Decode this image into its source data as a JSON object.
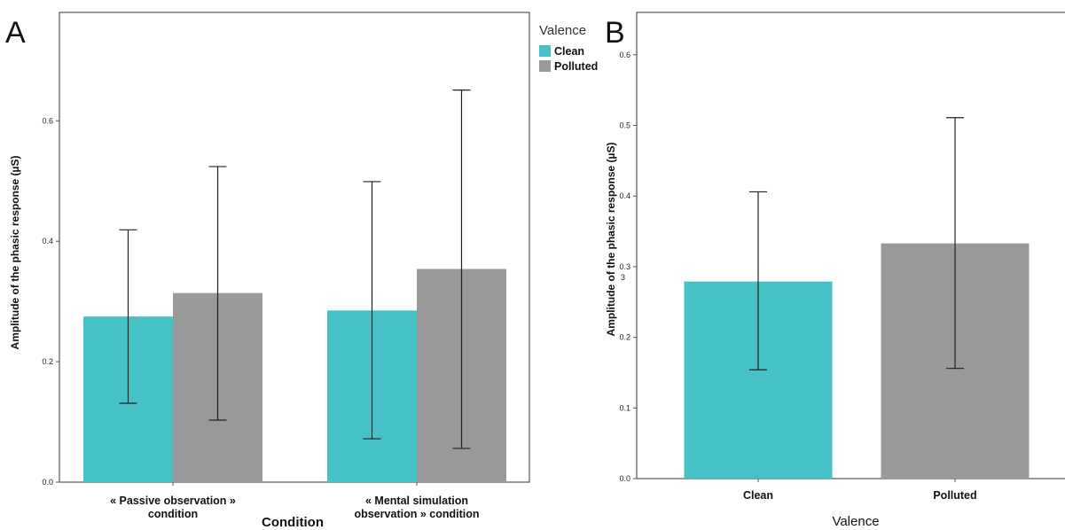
{
  "panels": {
    "a": {
      "letter": "A"
    },
    "b": {
      "letter": "B"
    }
  },
  "chart_data": [
    {
      "type": "bar",
      "panel": "A",
      "categories": [
        [
          "« Passive observation »",
          "condition"
        ],
        [
          "« Mental simulation",
          "observation » condition"
        ]
      ],
      "series": [
        {
          "name": "Clean",
          "color": "#46c1c6",
          "values": [
            0.275,
            0.285
          ],
          "err_low": [
            0.131,
            0.072
          ],
          "err_high": [
            0.419,
            0.499
          ]
        },
        {
          "name": "Polluted",
          "color": "#999999",
          "values": [
            0.314,
            0.354
          ],
          "err_low": [
            0.103,
            0.056
          ],
          "err_high": [
            0.524,
            0.651
          ]
        }
      ],
      "title": "",
      "xlabel": "Condition",
      "ylabel": "Amplitude of the phasic response (µS)",
      "ylim": [
        0,
        0.78
      ],
      "yticks": [
        "0.0",
        "0.2",
        "0.4",
        "0.6"
      ],
      "legend": {
        "title": "Valence",
        "placement": "outside-right",
        "entries": [
          "Clean",
          "Polluted"
        ]
      },
      "grid": false
    },
    {
      "type": "bar",
      "panel": "B",
      "categories": [
        "Clean",
        "Polluted"
      ],
      "values": [
        0.279,
        0.333
      ],
      "colors": [
        "#46c1c6",
        "#999999"
      ],
      "err_low": [
        0.154,
        0.156
      ],
      "err_high": [
        0.406,
        0.511
      ],
      "title": "",
      "xlabel": "Valence",
      "ylabel": "Amplitude of the phasic response (µS)",
      "ylim": [
        0,
        0.66
      ],
      "yticks": [
        "0.0",
        "0.1",
        "0.2",
        "0.3",
        "0.4",
        "0.5",
        "0.6"
      ],
      "ytick_note": {
        "tick": "0.3",
        "text": "3"
      },
      "grid": false
    }
  ]
}
